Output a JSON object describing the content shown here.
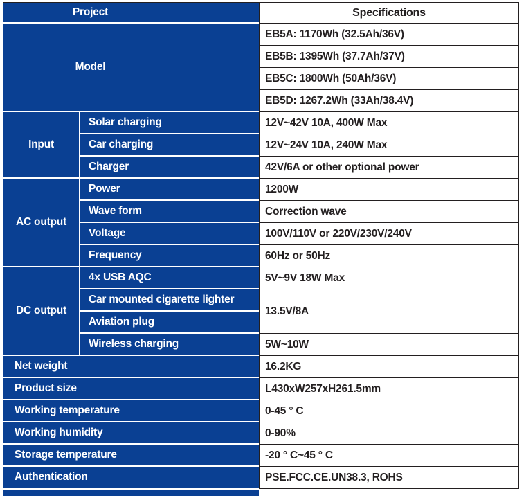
{
  "header": {
    "project_label": "Project",
    "specifications_label": "Specifications"
  },
  "model": {
    "label": "Model",
    "variants": [
      "EB5A: 1170Wh (32.5Ah/36V)",
      "EB5B: 1395Wh (37.7Ah/37V)",
      "EB5C: 1800Wh (50Ah/36V)",
      "EB5D: 1267.2Wh (33Ah/38.4V)"
    ]
  },
  "groups": [
    {
      "label": "Input",
      "items": [
        {
          "name": "Solar charging",
          "value": "12V~42V 10A, 400W Max"
        },
        {
          "name": "Car charging",
          "value": "12V~24V 10A, 240W Max"
        },
        {
          "name": "Charger",
          "value": "42V/6A or other optional power"
        }
      ]
    },
    {
      "label": "AC output",
      "items": [
        {
          "name": "Power",
          "value": "1200W"
        },
        {
          "name": "Wave form",
          "value": "Correction wave"
        },
        {
          "name": "Voltage",
          "value": "100V/110V or 220V/230V/240V"
        },
        {
          "name": "Frequency",
          "value": "60Hz or 50Hz"
        }
      ]
    },
    {
      "label": "DC output",
      "items": [
        {
          "name": "4x USB AQC",
          "value": "5V~9V 18W Max"
        },
        {
          "name": "Car mounted cigarette lighter",
          "value": "13.5V/8A"
        },
        {
          "name": "Aviation plug",
          "value": ""
        },
        {
          "name": "Wireless charging",
          "value": "5W~10W"
        }
      ]
    }
  ],
  "rows": [
    {
      "name": "Net weight",
      "value": "16.2KG"
    },
    {
      "name": "Product size",
      "value": "L430xW257xH261.5mm"
    },
    {
      "name": "Working temperature",
      "value": "0-45 ° C"
    },
    {
      "name": "Working humidity",
      "value": "0-90%"
    },
    {
      "name": "Storage temperature",
      "value": "-20 ° C~45 ° C"
    },
    {
      "name": "Authentication",
      "value": "PSE.FCC.CE.UN38.3, ROHS"
    }
  ],
  "colors": {
    "table_blue": "#0a4093",
    "border_dark": "#231f20",
    "label_text": "#ffffff",
    "value_text": "#231f20"
  }
}
